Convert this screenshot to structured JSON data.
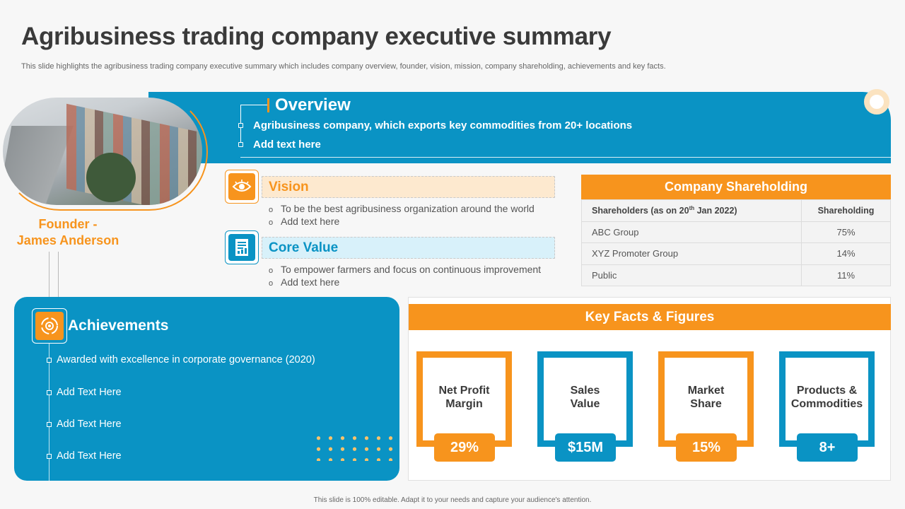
{
  "title": "Agribusiness trading company executive summary",
  "subtitle": "This slide highlights the agribusiness trading company executive  summary which includes company overview, founder, vision, mission, company shareholding, achievements and key facts.",
  "founder": {
    "line1": "Founder -",
    "line2": "James Anderson"
  },
  "overview": {
    "title": "Overview",
    "items": [
      "Agribusiness company, which exports key commodities from 20+ locations",
      "Add text here"
    ]
  },
  "vision": {
    "title": "Vision",
    "bullets": [
      "To be the best agribusiness organization around the world",
      "Add text here"
    ]
  },
  "core_value": {
    "title": "Core Value",
    "bullets": [
      "To empower farmers and focus on continuous improvement",
      "Add text here"
    ]
  },
  "shareholding": {
    "title": "Company Shareholding",
    "header": {
      "col1_main": "Shareholders  (as on 20",
      "col1_sup": "th",
      "col1_end": " Jan 2022)",
      "col2": "Shareholding"
    },
    "rows": [
      {
        "name": "ABC Group",
        "value": "75%"
      },
      {
        "name": "XYZ  Promoter  Group",
        "value": "14%"
      },
      {
        "name": "Public",
        "value": "11%"
      }
    ]
  },
  "achievements": {
    "title": "Achievements",
    "items": [
      "Awarded with excellence in corporate governance (2020)",
      "Add Text Here",
      "Add Text Here",
      "Add Text Here"
    ]
  },
  "key_facts": {
    "title": "Key Facts & Figures",
    "cards": [
      {
        "line1": "Net Profit",
        "line2": "Margin",
        "value": "29%",
        "color": "#f7941d"
      },
      {
        "line1": "Sales",
        "line2": "Value",
        "value": "$15M",
        "color": "#0a93c4"
      },
      {
        "line1": "Market",
        "line2": "Share",
        "value": "15%",
        "color": "#f7941d"
      },
      {
        "line1": "Products &",
        "line2": "Commodities",
        "value": "8+",
        "color": "#0a93c4"
      }
    ]
  },
  "footer": "This slide is 100% editable.  Adapt it to your needs and capture your audience's attention.",
  "colors": {
    "orange": "#f7941d",
    "blue": "#0a93c4"
  },
  "icons": {
    "vision": "eye-icon",
    "core_value": "document-icon",
    "achievements": "gear-cycle-icon"
  }
}
